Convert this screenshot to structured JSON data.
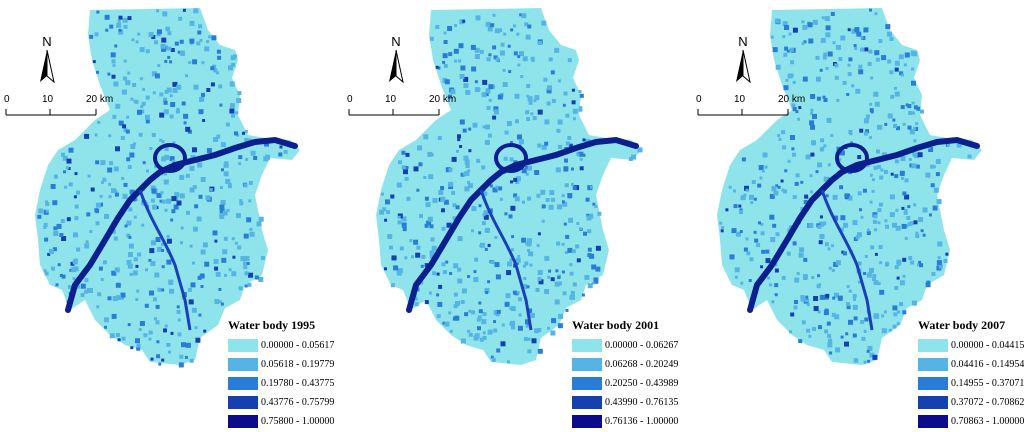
{
  "north_label": "N",
  "scale": {
    "ticks": [
      "0",
      "10",
      "20 km"
    ]
  },
  "colors": {
    "background": "#8fe4ec",
    "class_colors": [
      "#8fe4ec",
      "#55b4e3",
      "#2a7dd6",
      "#1540b0",
      "#0b0b8c"
    ],
    "river": "#0c1f8e",
    "river_light": "#1a3fb8"
  },
  "maps": [
    {
      "legend_title": "Water body 1995",
      "classes": [
        "0.00000 - 0.05617",
        "0.05618 - 0.19779",
        "0.19780 - 0.43775",
        "0.43776 - 0.75799",
        "0.75800 - 1.00000"
      ]
    },
    {
      "legend_title": "Water body 2001",
      "classes": [
        "0.00000 - 0.06267",
        "0.06268 - 0.20249",
        "0.20250 - 0.43989",
        "0.43990 - 0.76135",
        "0.76136 - 1.00000"
      ]
    },
    {
      "legend_title": "Water body 2007",
      "classes": [
        "0.00000 - 0.04415",
        "0.04416 - 0.14954",
        "0.14955 - 0.37071",
        "0.37072 - 0.70862",
        "0.70863 - 1.00000"
      ]
    }
  ]
}
